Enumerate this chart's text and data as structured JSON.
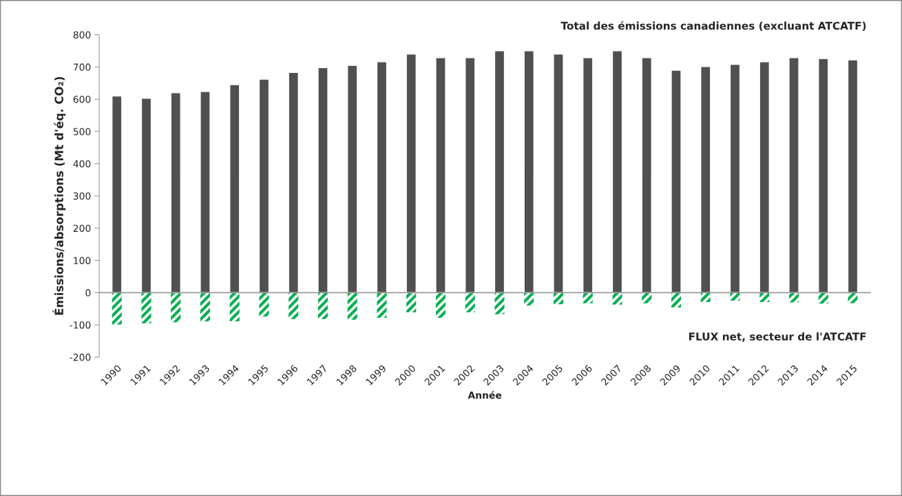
{
  "chart_data": {
    "type": "bar",
    "xlabel": "Année",
    "ylabel": "Émissions/absorptions (Mt d'éq. CO₂)",
    "categories": [
      "1990",
      "1991",
      "1992",
      "1993",
      "1994",
      "1995",
      "1996",
      "1997",
      "1998",
      "1999",
      "2000",
      "2001",
      "2002",
      "2003",
      "2004",
      "2005",
      "2006",
      "2007",
      "2008",
      "2009",
      "2010",
      "2011",
      "2012",
      "2013",
      "2014",
      "2015"
    ],
    "series": [
      {
        "name": "Total des émissions canadiennes (excluant ATCATF)",
        "color": "#505050",
        "values": [
          610,
          603,
          620,
          624,
          645,
          662,
          683,
          698,
          705,
          716,
          740,
          729,
          729,
          750,
          750,
          740,
          729,
          750,
          729,
          690,
          701,
          708,
          716,
          729,
          726,
          722
        ]
      },
      {
        "name": "FLUX net, secteur de l'ATCATF",
        "color": "#00b050",
        "values": [
          -99,
          -95,
          -92,
          -89,
          -89,
          -74,
          -82,
          -82,
          -84,
          -78,
          -61,
          -78,
          -61,
          -67,
          -40,
          -36,
          -33,
          -37,
          -33,
          -46,
          -29,
          -25,
          -29,
          -30,
          -34,
          -33
        ]
      }
    ],
    "stacked": true,
    "ylim": [
      -200,
      800
    ],
    "yticks": [
      -200,
      -100,
      0,
      100,
      200,
      300,
      400,
      500,
      600,
      700,
      800
    ]
  }
}
